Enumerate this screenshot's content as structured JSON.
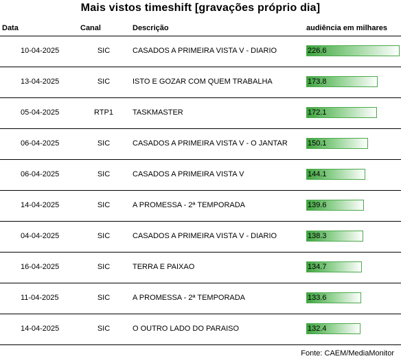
{
  "title": "Mais vistos timeshift [gravações próprio dia]",
  "columns": {
    "data": "Data",
    "canal": "Canal",
    "descricao": "Descrição",
    "audiencia": "audiência em milhares"
  },
  "source": "Fonte: CAEM/MediaMonitor",
  "colors": {
    "bar_dark": "#3fa43f",
    "bar_light": "#8fd08f",
    "bar_border": "#4aa84a"
  },
  "chart_data": {
    "type": "bar",
    "title": "Mais vistos timeshift [gravações próprio dia]",
    "value_label": "audiência em milhares",
    "rows": [
      {
        "date": "10-04-2025",
        "channel": "SIC",
        "description": "CASADOS A PRIMEIRA VISTA V - DIARIO",
        "value": 226.6
      },
      {
        "date": "13-04-2025",
        "channel": "SIC",
        "description": "ISTO E GOZAR COM QUEM TRABALHA",
        "value": 173.8
      },
      {
        "date": "05-04-2025",
        "channel": "RTP1",
        "description": "TASKMASTER",
        "value": 172.1
      },
      {
        "date": "06-04-2025",
        "channel": "SIC",
        "description": "CASADOS A PRIMEIRA VISTA V - O JANTAR",
        "value": 150.1
      },
      {
        "date": "06-04-2025",
        "channel": "SIC",
        "description": "CASADOS A PRIMEIRA VISTA V",
        "value": 144.1
      },
      {
        "date": "14-04-2025",
        "channel": "SIC",
        "description": "A PROMESSA - 2ª TEMPORADA",
        "value": 139.6
      },
      {
        "date": "04-04-2025",
        "channel": "SIC",
        "description": "CASADOS A PRIMEIRA VISTA V - DIARIO",
        "value": 138.3
      },
      {
        "date": "16-04-2025",
        "channel": "SIC",
        "description": "TERRA E PAIXAO",
        "value": 134.7
      },
      {
        "date": "11-04-2025",
        "channel": "SIC",
        "description": "A PROMESSA - 2ª TEMPORADA",
        "value": 133.6
      },
      {
        "date": "14-04-2025",
        "channel": "SIC",
        "description": "O OUTRO LADO DO PARAISO",
        "value": 132.4
      }
    ]
  }
}
